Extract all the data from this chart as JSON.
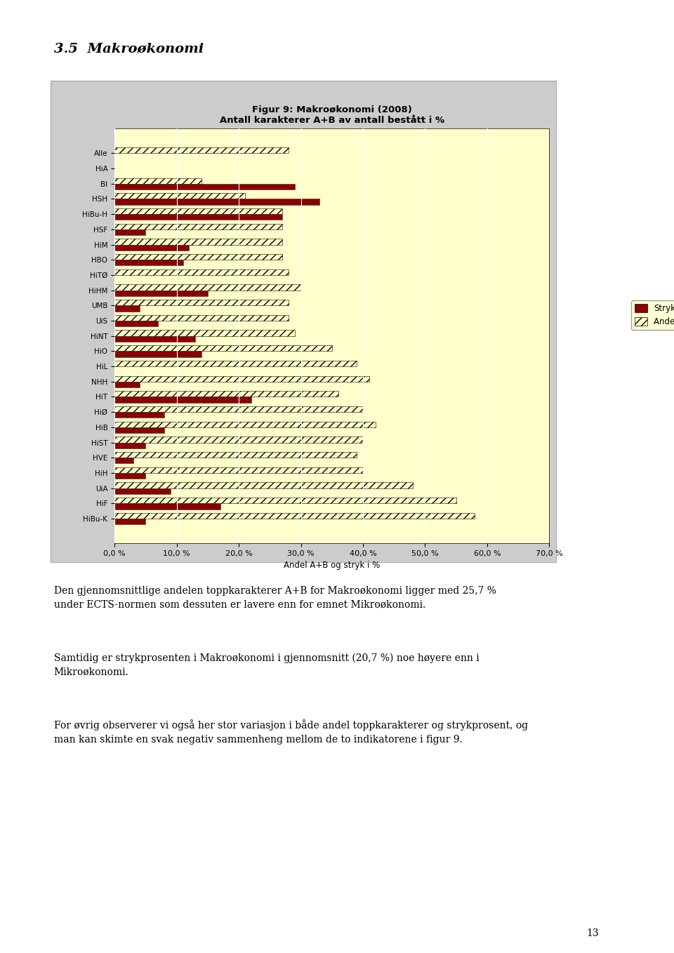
{
  "title_line1": "Figur 9: Makroøkonomi (2008)",
  "title_line2": "Antall karakterer A+B av antall bestått i %",
  "xlabel": "Andel A+B og stryk i %",
  "section_title": "3.5  Makroøkonomi",
  "categories": [
    "Alle",
    "HiA",
    "BI",
    "HSH",
    "HiBu-H",
    "HSF",
    "HiM",
    "HBO",
    "HiTØ",
    "HiHM",
    "UMB",
    "UiS",
    "HiNT",
    "HiO",
    "HiL",
    "NHH",
    "HiT",
    "HiØ",
    "HiB",
    "HiST",
    "HVE",
    "HiH",
    "UiA",
    "HiF",
    "HiBu-K"
  ],
  "stryk": [
    0,
    0,
    29,
    33,
    27,
    5,
    12,
    11,
    0,
    15,
    4,
    7,
    13,
    14,
    0,
    4,
    22,
    8,
    8,
    5,
    3,
    5,
    9,
    17,
    5
  ],
  "andel": [
    28,
    0,
    14,
    21,
    27,
    27,
    27,
    27,
    28,
    30,
    28,
    28,
    29,
    35,
    39,
    41,
    36,
    40,
    42,
    40,
    39,
    40,
    48,
    55,
    58
  ],
  "bar_color_stryk": "#8B0000",
  "bar_color_andel_face": "#FFFFCC",
  "bar_hatch": "///",
  "background_color": "#FFFFCC",
  "plot_bg_color": "#FFFFCC",
  "outer_bg": "#EEEEEE",
  "legend_stryk": "Strykprosent",
  "legend_andel": "Andel A+B",
  "xticks": [
    0,
    10,
    20,
    30,
    40,
    50,
    60,
    70
  ],
  "xtick_labels": [
    "0,0 %",
    "10,0 %",
    "20,0 %",
    "30,0 %",
    "40,0 %",
    "50,0 %",
    "60,0 %",
    "70,0 %"
  ],
  "xlim": [
    0,
    70
  ],
  "text1": "Den gjennomsnittlige andelen toppkarakterer A+B for Makroøkonomi ligger med 25,7 %\nunder ECTS-normen som dessuten er lavere enn for emnet Mikroøkonomi.",
  "text2": "Samtidig er strykprosenten i Makroøkonomi i gjennomsnitt (20,7 %) noe høyere enn i\nMikroøkonomi.",
  "text3": "For øvrig observerer vi også her stor variasjon i både andel toppkarakterer og strykprosent, og\nman kan skimte en svak negativ sammenheng mellom de to indikatorene i figur 9.",
  "page_number": "13"
}
